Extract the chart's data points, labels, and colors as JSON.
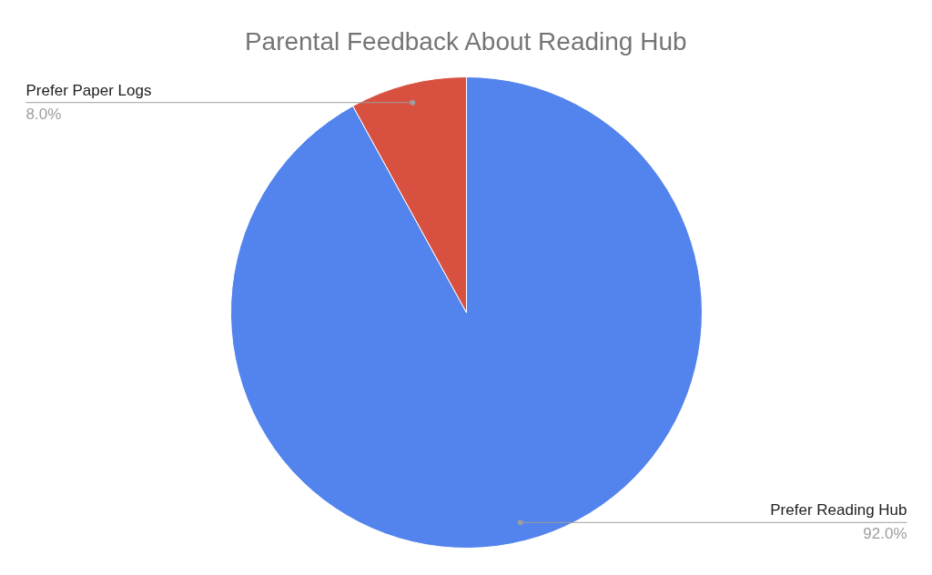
{
  "chart_data": {
    "type": "pie",
    "title": "Parental Feedback About Reading Hub",
    "categories": [
      "Prefer Reading Hub",
      "Prefer Paper Logs"
    ],
    "values": [
      92,
      8
    ],
    "colors": [
      "#5383ec",
      "#d85040"
    ],
    "value_labels": [
      "92.0%",
      "8.0%"
    ]
  }
}
